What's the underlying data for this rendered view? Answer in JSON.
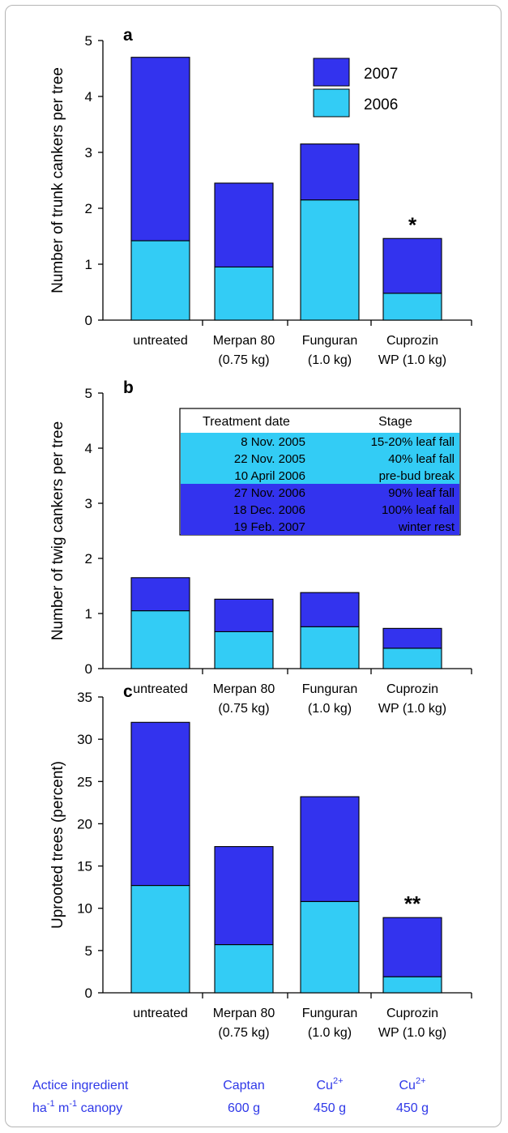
{
  "colors": {
    "y2006": "#33ccf5",
    "y2007": "#3333ee",
    "text_blue": "#2f38e8"
  },
  "legend": {
    "y2007": "2007",
    "y2006": "2006"
  },
  "categories": [
    [
      "untreated"
    ],
    [
      "Merpan 80",
      "(0.75 kg)"
    ],
    [
      "Funguran",
      "(1.0 kg)"
    ],
    [
      "Cuprozin",
      "WP (1.0 kg)"
    ]
  ],
  "chart_data": [
    {
      "type": "bar",
      "stacked": true,
      "panel_label": "a",
      "ylabel": "Number of trunk cankers per tree",
      "ylim": [
        0,
        5
      ],
      "yticks": [
        0,
        1,
        2,
        3,
        4,
        5
      ],
      "series": [
        {
          "name": "2006",
          "values": [
            1.42,
            0.95,
            2.15,
            0.48
          ]
        },
        {
          "name": "2007",
          "values": [
            3.28,
            1.5,
            1.0,
            0.98
          ]
        }
      ],
      "totals": [
        4.7,
        2.45,
        3.15,
        1.46
      ],
      "annotations": [
        "",
        "",
        "",
        "*"
      ],
      "legend_position": "top-right"
    },
    {
      "type": "bar",
      "stacked": true,
      "panel_label": "b",
      "ylabel": "Number of twig cankers per tree",
      "ylim": [
        0,
        5
      ],
      "yticks": [
        0,
        1,
        2,
        3,
        4,
        5
      ],
      "series": [
        {
          "name": "2006",
          "values": [
            1.05,
            0.67,
            0.76,
            0.37
          ]
        },
        {
          "name": "2007",
          "values": [
            0.6,
            0.59,
            0.62,
            0.36
          ]
        }
      ],
      "totals": [
        1.65,
        1.26,
        1.38,
        0.73
      ],
      "annotations": [
        "",
        "",
        "",
        ""
      ]
    },
    {
      "type": "bar",
      "stacked": true,
      "panel_label": "c",
      "ylabel": "Uprooted trees (percent)",
      "ylim": [
        0,
        35
      ],
      "yticks": [
        0,
        5,
        10,
        15,
        20,
        25,
        30,
        35
      ],
      "series": [
        {
          "name": "2006",
          "values": [
            12.7,
            5.7,
            10.8,
            1.9
          ]
        },
        {
          "name": "2007",
          "values": [
            19.3,
            11.6,
            12.4,
            7.0
          ]
        }
      ],
      "totals": [
        32.0,
        17.3,
        23.2,
        8.9
      ],
      "annotations": [
        "",
        "",
        "",
        "**"
      ]
    }
  ],
  "treatment_table": {
    "header": {
      "date": "Treatment date",
      "stage": "Stage"
    },
    "rows": [
      {
        "date": "8 Nov. 2005",
        "stage": "15-20% leaf fall",
        "year": "2006"
      },
      {
        "date": "22 Nov. 2005",
        "stage": "40% leaf fall",
        "year": "2006"
      },
      {
        "date": "10 April 2006",
        "stage": "pre-bud break",
        "year": "2006"
      },
      {
        "date": "27 Nov. 2006",
        "stage": "90% leaf fall",
        "year": "2007"
      },
      {
        "date": "18 Dec. 2006",
        "stage": "100% leaf fall",
        "year": "2007"
      },
      {
        "date": "19 Feb. 2007",
        "stage": "winter rest",
        "year": "2007"
      }
    ]
  },
  "ingredients": {
    "label_line1": "Actice ingredient",
    "label_line2_pre": "ha",
    "label_line2_sup1": "-1",
    "label_line2_mid": " m",
    "label_line2_sup2": "-1",
    "label_line2_post": " canopy",
    "items": [
      {
        "name": "Captan",
        "sup": "",
        "amount": "600 g"
      },
      {
        "name": "Cu",
        "sup": "2+",
        "amount": "450 g"
      },
      {
        "name": "Cu",
        "sup": "2+",
        "amount": "450 g"
      }
    ]
  }
}
